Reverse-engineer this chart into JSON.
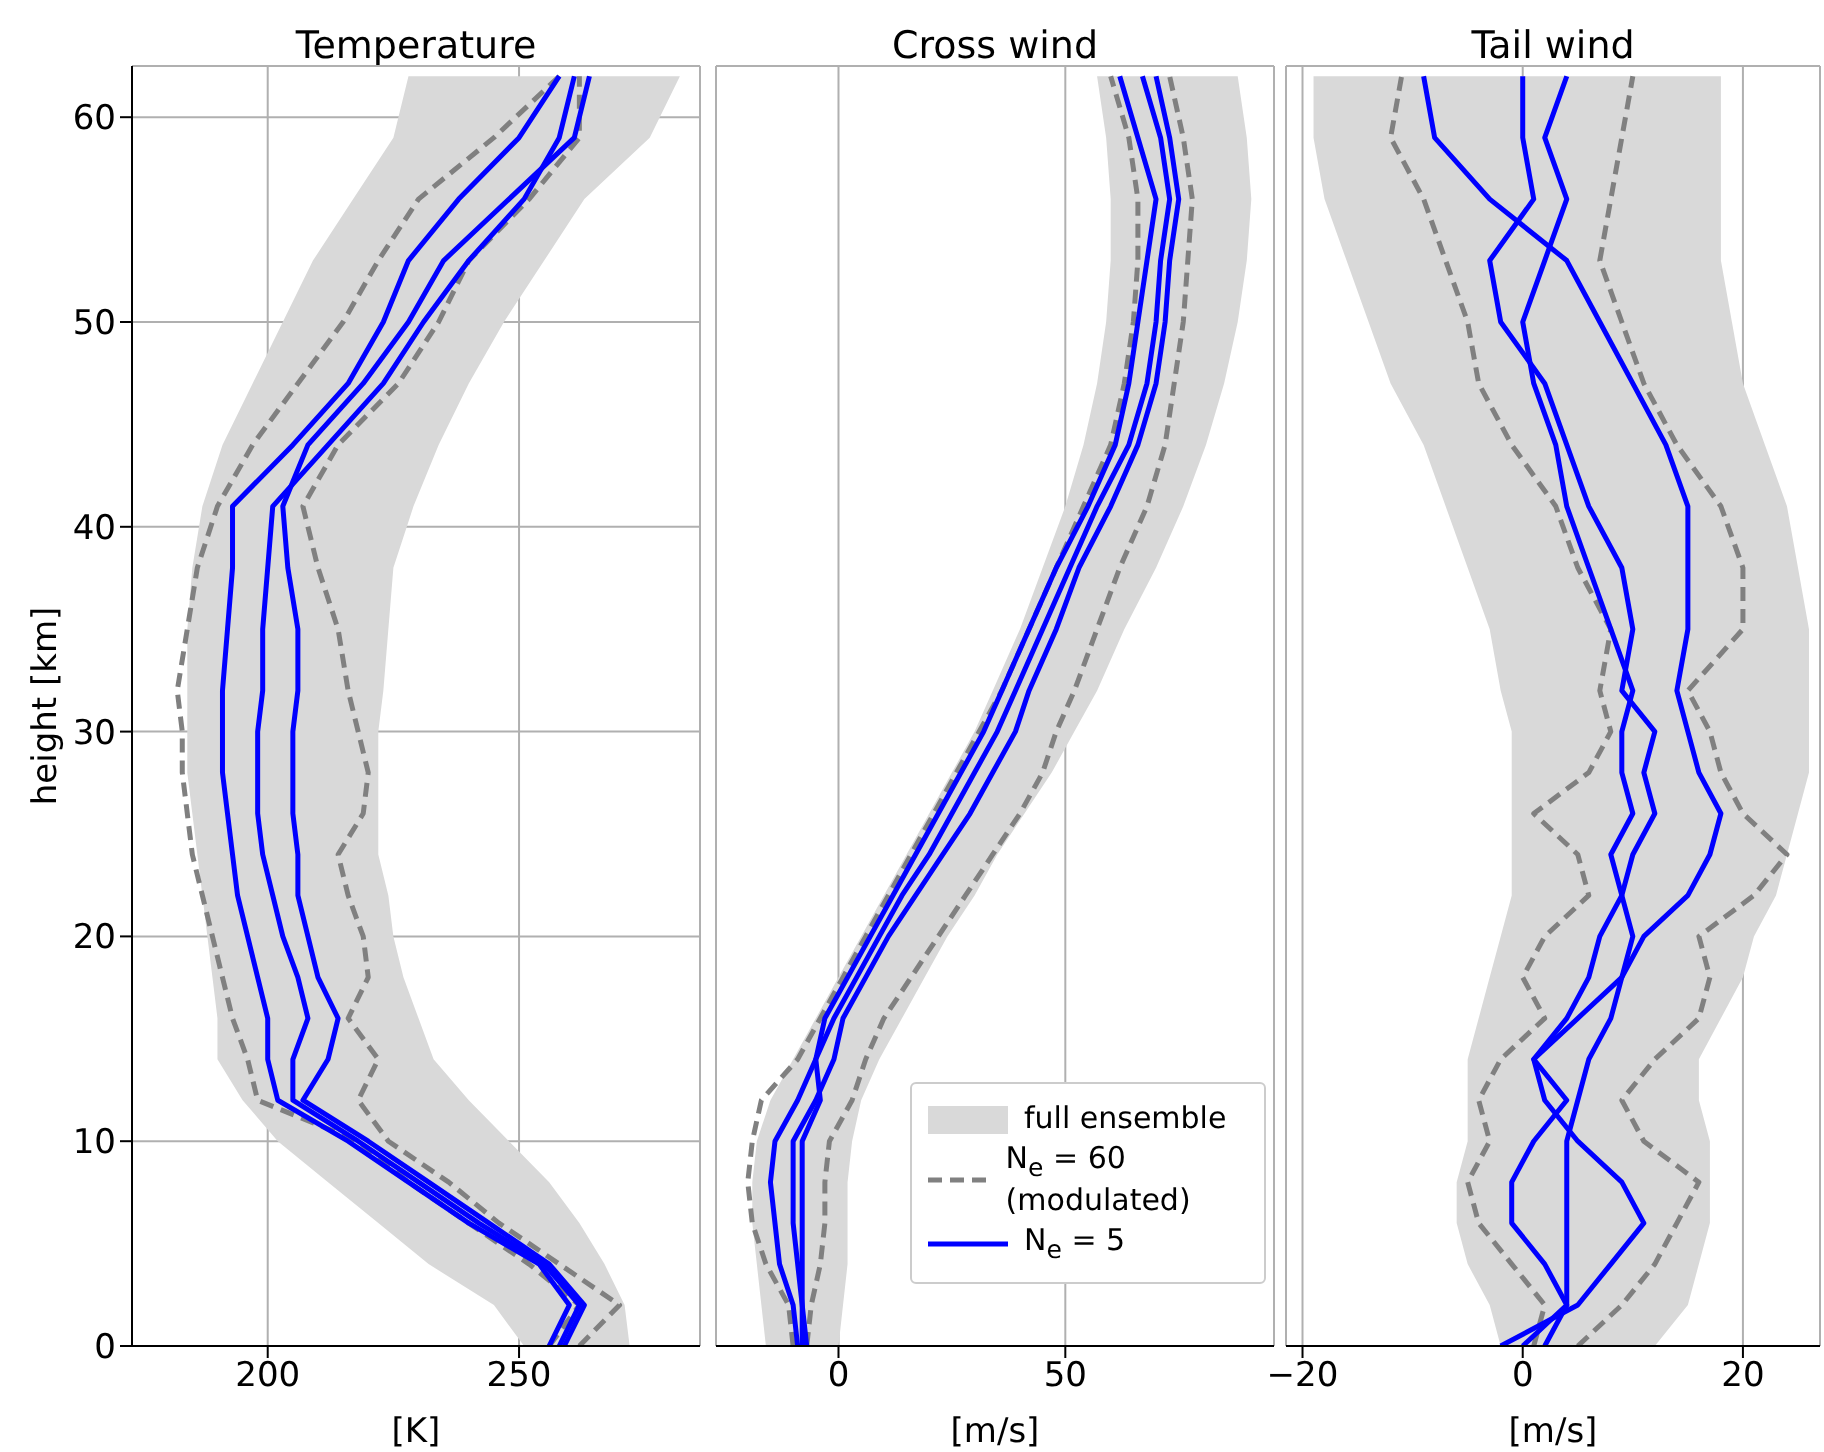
{
  "chart_data": [
    {
      "type": "line",
      "orientation": "horizontal",
      "title": "Temperature",
      "xlabel": "[K]",
      "ylabel": "height [km]",
      "grid": true,
      "marker": "none",
      "x": [
        0,
        2,
        4,
        6,
        8,
        10,
        12,
        14,
        16,
        18,
        20,
        22,
        24,
        26,
        28,
        30,
        32,
        35,
        38,
        41,
        44,
        47,
        50,
        53,
        56,
        59,
        62
      ],
      "xlim": [
        173,
        286
      ],
      "xticks": [
        200,
        250
      ],
      "ylim": [
        0,
        62.5
      ],
      "yticks": [
        0,
        10,
        20,
        30,
        40,
        50,
        60
      ],
      "series": [
        {
          "type": "area",
          "color": "#d9d9d9",
          "values": [
            null,
            null,
            null,
            null,
            null,
            null,
            null,
            null,
            null,
            null,
            null,
            null,
            null,
            null,
            null,
            null,
            null,
            null,
            null,
            null,
            null,
            null,
            null,
            null,
            null,
            null,
            null
          ],
          "lower": [
            251,
            245,
            232,
            222,
            212,
            202,
            195,
            190,
            190,
            189,
            188,
            187,
            186,
            185,
            184,
            184,
            184,
            184,
            185,
            187,
            191,
            197,
            203,
            209,
            217,
            225,
            228
          ],
          "upper": [
            272,
            271,
            267,
            262,
            256,
            248,
            240,
            233,
            230,
            227,
            225,
            224,
            222,
            222,
            222,
            222,
            223,
            224,
            225,
            229,
            234,
            240,
            247,
            255,
            263,
            276,
            282
          ]
        },
        {
          "color": "#808080",
          "line_style": "dashed",
          "values": [
            256,
            262,
            252,
            240,
            228,
            218,
            198,
            196,
            193,
            191,
            189,
            187,
            185,
            184,
            183,
            183,
            182,
            184,
            186,
            190,
            197,
            206,
            215,
            222,
            230,
            245,
            258
          ]
        },
        {
          "color": "#808080",
          "line_style": "dashed",
          "values": [
            262,
            270,
            258,
            246,
            236,
            224,
            218,
            222,
            216,
            220,
            219,
            216,
            214,
            219,
            220,
            218,
            216,
            214,
            210,
            207,
            214,
            226,
            234,
            240,
            252,
            262,
            262
          ]
        },
        {
          "color": "#0000ff",
          "line_style": "solid",
          "values": [
            256,
            260,
            254,
            240,
            228,
            216,
            202,
            200,
            200,
            198,
            196,
            194,
            193,
            192,
            191,
            191,
            191,
            192,
            193,
            193,
            205,
            216,
            223,
            228,
            238,
            250,
            258
          ]
        },
        {
          "color": "#0000ff",
          "line_style": "solid",
          "values": [
            259,
            263,
            256,
            244,
            232,
            220,
            207,
            212,
            214,
            210,
            208,
            206,
            206,
            205,
            205,
            205,
            206,
            206,
            204,
            203,
            208,
            219,
            228,
            235,
            248,
            261,
            264
          ]
        },
        {
          "color": "#0000ff",
          "line_style": "solid",
          "values": [
            258,
            262,
            255,
            242,
            230,
            218,
            205,
            205,
            208,
            206,
            203,
            201,
            199,
            198,
            198,
            198,
            199,
            199,
            200,
            201,
            212,
            223,
            231,
            240,
            251,
            258,
            261
          ]
        }
      ]
    },
    {
      "type": "line",
      "orientation": "horizontal",
      "title": "Cross wind",
      "xlabel": "[m/s]",
      "grid": true,
      "marker": "none",
      "tick_labels": "x",
      "legend": "bottom right",
      "x": [
        0,
        2,
        4,
        6,
        8,
        10,
        12,
        14,
        16,
        18,
        20,
        22,
        24,
        26,
        28,
        30,
        32,
        35,
        38,
        41,
        44,
        47,
        50,
        53,
        56,
        59,
        62
      ],
      "xlim": [
        -27,
        96
      ],
      "xticks": [
        0,
        50
      ],
      "ylim": [
        0,
        62.5
      ],
      "yticks": [
        0,
        10,
        20,
        30,
        40,
        50,
        60
      ],
      "series": [
        {
          "type": "area",
          "name": "full ensemble",
          "color": "#d9d9d9",
          "values": [
            null,
            null,
            null,
            null,
            null,
            null,
            null,
            null,
            null,
            null,
            null,
            null,
            null,
            null,
            null,
            null,
            null,
            null,
            null,
            null,
            null,
            null,
            null,
            null,
            null,
            null,
            null
          ],
          "lower": [
            -16,
            -17,
            -18,
            -19,
            -19,
            -18,
            -15,
            -10,
            -5,
            0,
            5,
            10,
            15,
            20,
            25,
            30,
            34,
            40,
            45,
            50,
            54,
            57,
            59,
            60,
            60,
            59,
            57
          ],
          "upper": [
            0,
            1,
            2,
            2,
            2,
            3,
            5,
            9,
            14,
            19,
            24,
            30,
            35,
            41,
            47,
            52,
            57,
            63,
            70,
            76,
            81,
            85,
            88,
            90,
            91,
            90,
            88
          ]
        },
        {
          "name": "N$_{e}$ = 60 (modulated)",
          "color": "#808080",
          "line_style": "dashed",
          "values": [
            -10,
            -11,
            -16,
            -19,
            -20,
            -19,
            -17,
            -9,
            -4,
            1,
            6,
            11,
            16,
            21,
            26,
            31,
            36,
            42,
            48,
            54,
            60,
            63,
            65,
            66,
            66,
            64,
            60
          ]
        },
        {
          "color": "#808080",
          "line_style": "dashed",
          "values": [
            -7,
            -6,
            -4,
            -3,
            -3,
            -2,
            3,
            6,
            10,
            16,
            22,
            28,
            34,
            40,
            45,
            48,
            52,
            57,
            62,
            68,
            72,
            74,
            76,
            77,
            78,
            76,
            73
          ]
        },
        {
          "name": "N$_{e}$ = 5",
          "color": "#0000ff",
          "line_style": "solid",
          "values": [
            -9,
            -10,
            -13,
            -14,
            -15,
            -14,
            -9,
            -5,
            -3,
            2,
            7,
            12,
            17,
            22,
            27,
            32,
            36,
            42,
            48,
            55,
            61,
            64,
            66,
            68,
            70,
            66,
            62
          ]
        },
        {
          "color": "#0000ff",
          "line_style": "solid",
          "values": [
            -8,
            -8,
            -9,
            -10,
            -10,
            -10,
            -5,
            -1,
            1,
            6,
            11,
            17,
            23,
            29,
            34,
            39,
            42,
            48,
            53,
            60,
            66,
            70,
            72,
            73,
            75,
            73,
            70
          ]
        },
        {
          "color": "#0000ff",
          "line_style": "solid",
          "values": [
            -7,
            -8,
            -8,
            -8,
            -8,
            -8,
            -4,
            -5,
            -1,
            4,
            9,
            14,
            20,
            25,
            30,
            35,
            39,
            45,
            51,
            57,
            64,
            68,
            70,
            71,
            73,
            71,
            67
          ]
        }
      ]
    },
    {
      "type": "line",
      "orientation": "horizontal",
      "title": "Tail wind",
      "xlabel": "[m/s]",
      "grid": true,
      "marker": "none",
      "tick_labels": "x",
      "x": [
        0,
        2,
        4,
        6,
        8,
        10,
        12,
        14,
        16,
        18,
        20,
        22,
        24,
        26,
        28,
        30,
        32,
        35,
        38,
        41,
        44,
        47,
        50,
        53,
        56,
        59,
        62
      ],
      "xlim": [
        -21.5,
        27
      ],
      "xticks": [
        -20,
        0,
        20
      ],
      "ylim": [
        0,
        62.5
      ],
      "yticks": [
        0,
        10,
        20,
        30,
        40,
        50,
        60
      ],
      "series": [
        {
          "type": "area",
          "color": "#d9d9d9",
          "values": [
            null,
            null,
            null,
            null,
            null,
            null,
            null,
            null,
            null,
            null,
            null,
            null,
            null,
            null,
            null,
            null,
            null,
            null,
            null,
            null,
            null,
            null,
            null,
            null,
            null,
            null,
            null
          ],
          "lower": [
            -2,
            -3,
            -5,
            -6,
            -6,
            -5,
            -5,
            -5,
            -4,
            -3,
            -2,
            -1,
            -1,
            -1,
            -1,
            -1,
            -2,
            -3,
            -5,
            -7,
            -9,
            -12,
            -14,
            -16,
            -18,
            -19,
            -19
          ],
          "upper": [
            12,
            15,
            16,
            17,
            17,
            17,
            16,
            16,
            18,
            20,
            21,
            23,
            24,
            25,
            26,
            26,
            26,
            26,
            25,
            24,
            22,
            20,
            19,
            18,
            18,
            18,
            18
          ]
        },
        {
          "color": "#808080",
          "line_style": "dashed",
          "values": [
            1,
            2,
            -1,
            -4,
            -5,
            -3,
            -4,
            -2,
            2,
            0,
            2,
            6,
            5,
            1,
            6,
            8,
            7,
            8,
            5,
            3,
            -1,
            -4,
            -5,
            -7,
            -9,
            -12,
            -11
          ]
        },
        {
          "color": "#808080",
          "line_style": "dashed",
          "values": [
            5,
            9,
            12,
            14,
            16,
            11,
            9,
            12,
            16,
            17,
            16,
            21,
            24,
            20,
            18,
            17,
            15,
            20,
            20,
            18,
            14,
            11,
            9,
            7,
            8,
            9,
            10
          ]
        },
        {
          "color": "#0000ff",
          "line_style": "solid",
          "values": [
            -2,
            5,
            8,
            11,
            9,
            5,
            2,
            1,
            5,
            9,
            11,
            15,
            17,
            18,
            16,
            15,
            14,
            15,
            15,
            15,
            13,
            10,
            7,
            4,
            -3,
            -8,
            -9
          ]
        },
        {
          "color": "#0000ff",
          "line_style": "solid",
          "values": [
            0,
            4,
            2,
            -1,
            -1,
            1,
            4,
            1,
            4,
            6,
            7,
            9,
            10,
            12,
            11,
            12,
            9,
            10,
            9,
            6,
            4,
            2,
            -2,
            -3,
            1,
            0,
            0
          ]
        },
        {
          "color": "#0000ff",
          "line_style": "solid",
          "values": [
            2,
            4,
            4,
            4,
            4,
            4,
            5,
            6,
            8,
            9,
            10,
            9,
            8,
            10,
            9,
            9,
            10,
            8,
            6,
            4,
            3,
            1,
            0,
            2,
            4,
            2,
            4
          ]
        }
      ]
    }
  ]
}
